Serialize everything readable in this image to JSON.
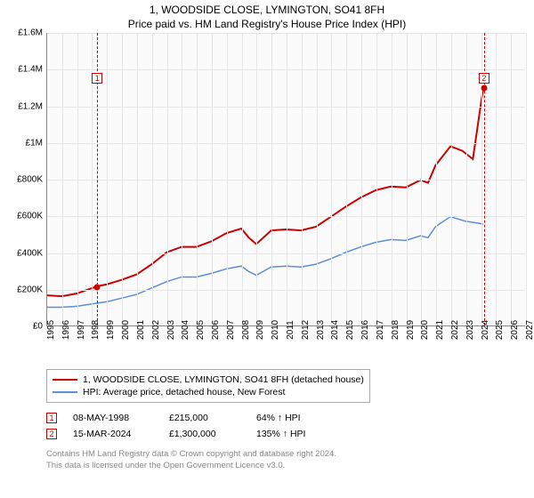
{
  "title_line1": "1, WOODSIDE CLOSE, LYMINGTON, SO41 8FH",
  "title_line2": "Price paid vs. HM Land Registry's House Price Index (HPI)",
  "chart": {
    "type": "line",
    "background_color": "#fbfbfb",
    "grid_color": "#e5e5e5",
    "axis_color": "#888888",
    "text_color": "#000000",
    "y": {
      "min": 0,
      "max": 1600000,
      "tick_step": 200000,
      "ticks": [
        "£0",
        "£200K",
        "£400K",
        "£600K",
        "£800K",
        "£1M",
        "£1.2M",
        "£1.4M",
        "£1.6M"
      ]
    },
    "x": {
      "min": 1995,
      "max": 2027,
      "tick_step": 1,
      "ticks": [
        "1995",
        "1996",
        "1997",
        "1998",
        "1999",
        "2000",
        "2001",
        "2002",
        "2003",
        "2004",
        "2005",
        "2006",
        "2007",
        "2008",
        "2009",
        "2010",
        "2011",
        "2012",
        "2013",
        "2014",
        "2015",
        "2016",
        "2017",
        "2018",
        "2019",
        "2020",
        "2021",
        "2022",
        "2023",
        "2024",
        "2025",
        "2026",
        "2027"
      ]
    },
    "series": [
      {
        "label": "1, WOODSIDE CLOSE, LYMINGTON, SO41 8FH (detached house)",
        "color": "#cc0000",
        "line_width": 2,
        "data": [
          [
            1995.0,
            165000
          ],
          [
            1996.0,
            160000
          ],
          [
            1997.0,
            175000
          ],
          [
            1998.35,
            215000
          ],
          [
            1999.0,
            225000
          ],
          [
            2000.0,
            250000
          ],
          [
            2001.0,
            280000
          ],
          [
            2002.0,
            335000
          ],
          [
            2003.0,
            400000
          ],
          [
            2004.0,
            430000
          ],
          [
            2005.0,
            430000
          ],
          [
            2006.0,
            460000
          ],
          [
            2007.0,
            505000
          ],
          [
            2008.0,
            530000
          ],
          [
            2008.5,
            480000
          ],
          [
            2009.0,
            445000
          ],
          [
            2010.0,
            520000
          ],
          [
            2011.0,
            525000
          ],
          [
            2012.0,
            520000
          ],
          [
            2013.0,
            540000
          ],
          [
            2014.0,
            595000
          ],
          [
            2015.0,
            650000
          ],
          [
            2016.0,
            700000
          ],
          [
            2017.0,
            740000
          ],
          [
            2018.0,
            760000
          ],
          [
            2019.0,
            755000
          ],
          [
            2020.0,
            795000
          ],
          [
            2020.5,
            780000
          ],
          [
            2021.0,
            875000
          ],
          [
            2022.0,
            980000
          ],
          [
            2022.8,
            955000
          ],
          [
            2023.5,
            910000
          ],
          [
            2024.2,
            1300000
          ]
        ]
      },
      {
        "label": "HPI: Average price, detached house, New Forest",
        "color": "#5a8fd6",
        "line_width": 1.5,
        "data": [
          [
            1995.0,
            100000
          ],
          [
            1996.0,
            100000
          ],
          [
            1997.0,
            105000
          ],
          [
            1998.0,
            118000
          ],
          [
            1999.0,
            130000
          ],
          [
            2000.0,
            150000
          ],
          [
            2001.0,
            170000
          ],
          [
            2002.0,
            205000
          ],
          [
            2003.0,
            240000
          ],
          [
            2004.0,
            265000
          ],
          [
            2005.0,
            265000
          ],
          [
            2006.0,
            285000
          ],
          [
            2007.0,
            310000
          ],
          [
            2008.0,
            325000
          ],
          [
            2008.5,
            295000
          ],
          [
            2009.0,
            275000
          ],
          [
            2010.0,
            320000
          ],
          [
            2011.0,
            325000
          ],
          [
            2012.0,
            320000
          ],
          [
            2013.0,
            335000
          ],
          [
            2014.0,
            365000
          ],
          [
            2015.0,
            400000
          ],
          [
            2016.0,
            430000
          ],
          [
            2017.0,
            455000
          ],
          [
            2018.0,
            470000
          ],
          [
            2019.0,
            465000
          ],
          [
            2020.0,
            490000
          ],
          [
            2020.5,
            480000
          ],
          [
            2021.0,
            540000
          ],
          [
            2022.0,
            595000
          ],
          [
            2023.0,
            570000
          ],
          [
            2024.2,
            555000
          ]
        ]
      }
    ],
    "markers": [
      {
        "idx": "1",
        "x": 1998.35,
        "y": 215000
      },
      {
        "idx": "2",
        "x": 2024.2,
        "y": 1300000
      }
    ]
  },
  "legend": [
    {
      "color": "#cc0000",
      "label": "1, WOODSIDE CLOSE, LYMINGTON, SO41 8FH (detached house)"
    },
    {
      "color": "#5a8fd6",
      "label": "HPI: Average price, detached house, New Forest"
    }
  ],
  "transactions": [
    {
      "idx": "1",
      "date": "08-MAY-1998",
      "price": "£215,000",
      "hpi": "64% ↑ HPI"
    },
    {
      "idx": "2",
      "date": "15-MAR-2024",
      "price": "£1,300,000",
      "hpi": "135% ↑ HPI"
    }
  ],
  "footnote_line1": "Contains HM Land Registry data © Crown copyright and database right 2024.",
  "footnote_line2": "This data is licensed under the Open Government Licence v3.0."
}
